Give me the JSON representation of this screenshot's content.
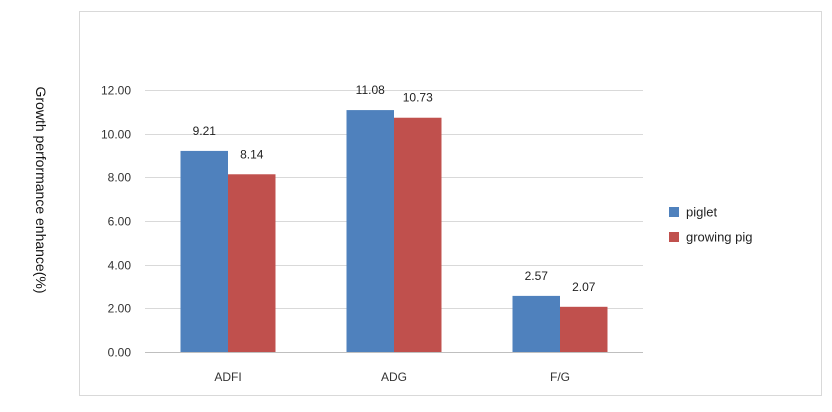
{
  "chart_data": {
    "type": "bar",
    "title": "",
    "xlabel": "",
    "ylabel": "Growth performance enhance(%)",
    "categories": [
      "ADFI",
      "ADG",
      "F/G"
    ],
    "series": [
      {
        "name": "piglet",
        "values": [
          9.21,
          11.08,
          2.57
        ],
        "labels": [
          "9.21",
          "11.08",
          "2.57"
        ],
        "color": "#4f81bd"
      },
      {
        "name": "growing pig",
        "values": [
          8.14,
          10.73,
          2.07
        ],
        "labels": [
          "8.14",
          "10.73",
          "2.07"
        ],
        "color": "#c0504d"
      }
    ],
    "ylim": [
      0,
      12
    ],
    "yticks": [
      "0.00",
      "2.00",
      "4.00",
      "6.00",
      "8.00",
      "10.00",
      "12.00"
    ],
    "grid": true,
    "legend": "right"
  }
}
